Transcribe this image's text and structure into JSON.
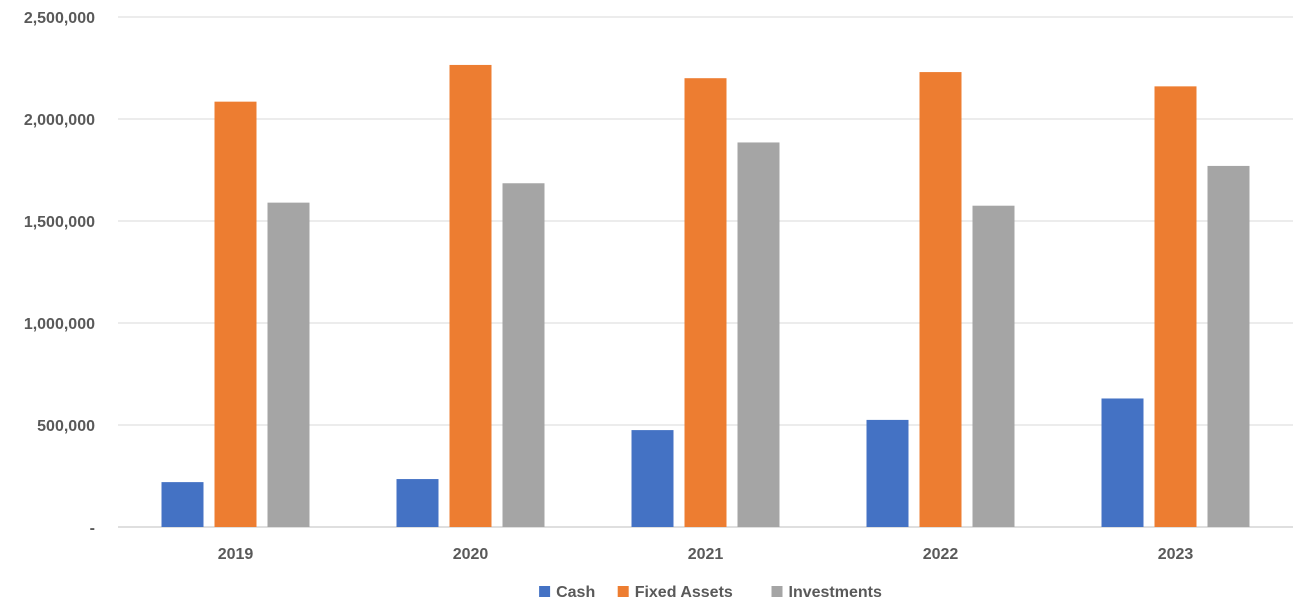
{
  "chart_data": {
    "type": "bar",
    "title": "",
    "xlabel": "",
    "ylabel": "",
    "categories": [
      "2019",
      "2020",
      "2021",
      "2022",
      "2023"
    ],
    "series": [
      {
        "name": "Cash",
        "color": "#4472C4",
        "values": [
          220000,
          235000,
          475000,
          525000,
          630000
        ]
      },
      {
        "name": "Fixed Assets",
        "color": "#ED7D31",
        "values": [
          2085000,
          2265000,
          2200000,
          2230000,
          2160000
        ]
      },
      {
        "name": "Investments",
        "color": "#A5A5A5",
        "values": [
          1590000,
          1685000,
          1885000,
          1575000,
          1770000
        ]
      }
    ],
    "ylim": [
      0,
      2500000
    ],
    "yticks": [
      0,
      500000,
      1000000,
      1500000,
      2000000,
      2500000
    ],
    "ytick_labels": [
      "-",
      "500,000",
      "1,000,000",
      "1,500,000",
      "2,000,000",
      "2,500,000"
    ],
    "grid": true,
    "legend_position": "bottom"
  }
}
